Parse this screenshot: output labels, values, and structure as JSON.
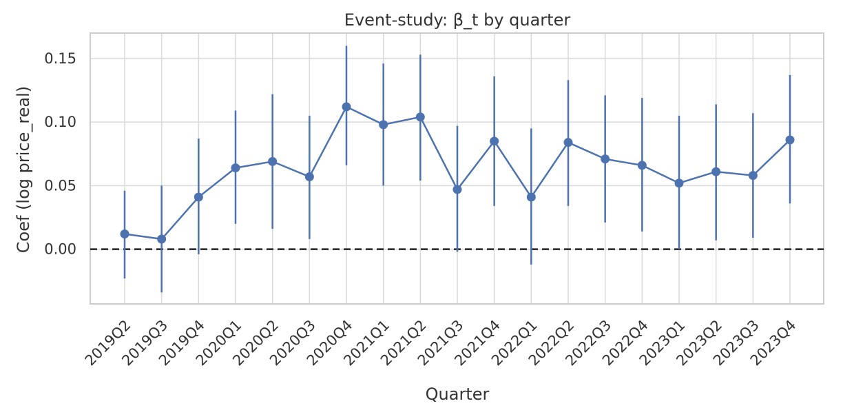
{
  "chart_data": {
    "type": "line",
    "title": "Event-study: β_t by quarter",
    "xlabel": "Quarter",
    "ylabel": "Coef (log price_real)",
    "categories": [
      "2019Q2",
      "2019Q3",
      "2019Q4",
      "2020Q1",
      "2020Q2",
      "2020Q3",
      "2020Q4",
      "2021Q1",
      "2021Q2",
      "2021Q3",
      "2021Q4",
      "2022Q1",
      "2022Q2",
      "2022Q3",
      "2022Q4",
      "2023Q1",
      "2023Q2",
      "2023Q3",
      "2023Q4"
    ],
    "series": [
      {
        "values": [
          0.012,
          0.008,
          0.041,
          0.064,
          0.069,
          0.057,
          0.112,
          0.098,
          0.104,
          0.047,
          0.085,
          0.041,
          0.084,
          0.071,
          0.066,
          0.052,
          0.061,
          0.058,
          0.086
        ],
        "lower": [
          -0.023,
          -0.034,
          -0.004,
          0.02,
          0.016,
          0.008,
          0.066,
          0.05,
          0.054,
          -0.002,
          0.034,
          -0.012,
          0.034,
          0.021,
          0.014,
          0.0,
          0.007,
          0.009,
          0.036
        ],
        "upper": [
          0.046,
          0.05,
          0.087,
          0.109,
          0.122,
          0.105,
          0.16,
          0.146,
          0.153,
          0.097,
          0.136,
          0.095,
          0.133,
          0.121,
          0.119,
          0.105,
          0.114,
          0.107,
          0.137
        ],
        "color": "#4c72b0"
      }
    ],
    "reference_line": {
      "y": 0.0,
      "style": "dashed",
      "color": "#222222"
    },
    "ylim": [
      -0.043,
      0.17
    ],
    "yticks": [
      0.0,
      0.05,
      0.1,
      0.15
    ],
    "ytick_labels": [
      "0.00",
      "0.05",
      "0.10",
      "0.15"
    ],
    "grid": true,
    "colors": {
      "grid": "#d9d9d9",
      "axes": "#cccccc",
      "text": "#333333"
    }
  }
}
